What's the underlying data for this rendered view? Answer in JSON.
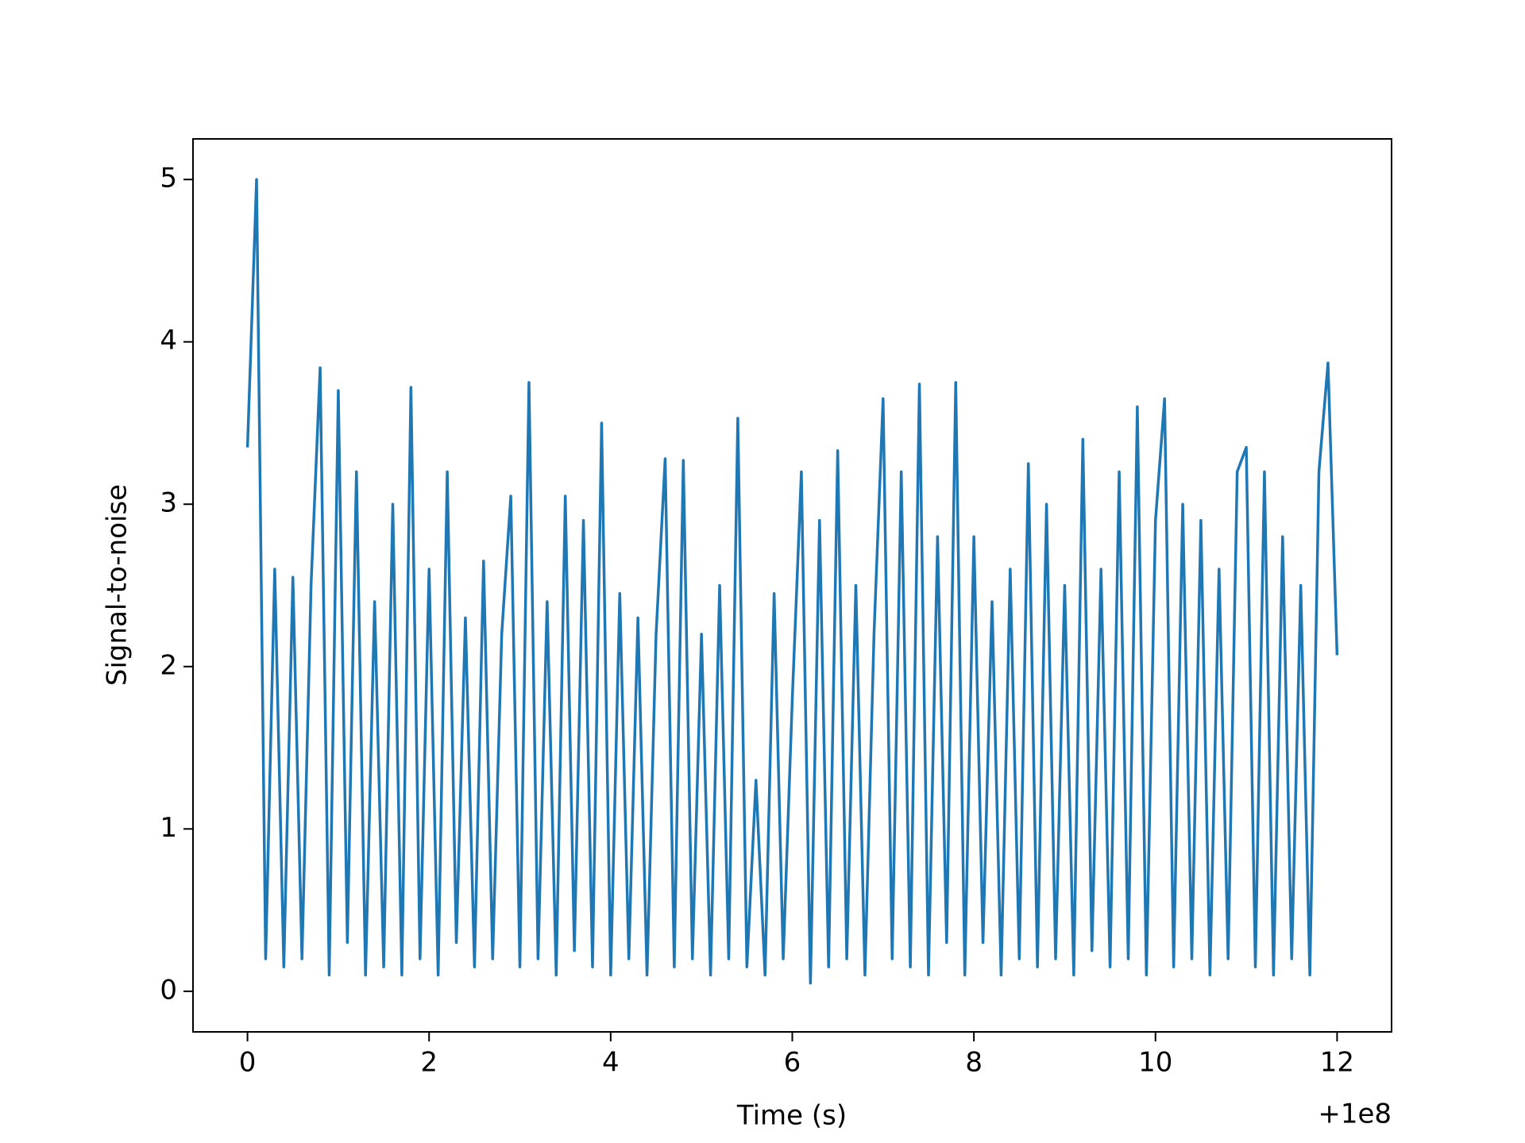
{
  "chart_data": {
    "type": "line",
    "x_label": "Time (s)",
    "y_label": "Signal-to-noise",
    "x_offset_label": "+1e8",
    "xlim": [
      99999999.4,
      100000012.6
    ],
    "ylim": [
      -0.25,
      5.25
    ],
    "xticks": [
      {
        "value": 100000000,
        "label": "0"
      },
      {
        "value": 100000002,
        "label": "2"
      },
      {
        "value": 100000004,
        "label": "4"
      },
      {
        "value": 100000006,
        "label": "6"
      },
      {
        "value": 100000008,
        "label": "8"
      },
      {
        "value": 100000010,
        "label": "10"
      },
      {
        "value": 100000012,
        "label": "12"
      }
    ],
    "yticks": [
      0,
      1,
      2,
      3,
      4,
      5
    ],
    "x": [
      100000000.0,
      100000000.1,
      100000000.2,
      100000000.3,
      100000000.4,
      100000000.5,
      100000000.6,
      100000000.7,
      100000000.8,
      100000000.9,
      100000001.0,
      100000001.1,
      100000001.2,
      100000001.3,
      100000001.4,
      100000001.5,
      100000001.6,
      100000001.7,
      100000001.8,
      100000001.9,
      100000002.0,
      100000002.1,
      100000002.2,
      100000002.3,
      100000002.4,
      100000002.5,
      100000002.6,
      100000002.7,
      100000002.8,
      100000002.9,
      100000003.0,
      100000003.1,
      100000003.2,
      100000003.3,
      100000003.4,
      100000003.5,
      100000003.6,
      100000003.7,
      100000003.8,
      100000003.9,
      100000004.0,
      100000004.1,
      100000004.2,
      100000004.3,
      100000004.4,
      100000004.5,
      100000004.6,
      100000004.7,
      100000004.8,
      100000004.9,
      100000005.0,
      100000005.1,
      100000005.2,
      100000005.3,
      100000005.4,
      100000005.5,
      100000005.6,
      100000005.7,
      100000005.8,
      100000005.9,
      100000006.0,
      100000006.1,
      100000006.2,
      100000006.3,
      100000006.4,
      100000006.5,
      100000006.6,
      100000006.7,
      100000006.8,
      100000006.9,
      100000007.0,
      100000007.1,
      100000007.2,
      100000007.3,
      100000007.4,
      100000007.5,
      100000007.6,
      100000007.7,
      100000007.8,
      100000007.9,
      100000008.0,
      100000008.1,
      100000008.2,
      100000008.3,
      100000008.4,
      100000008.5,
      100000008.6,
      100000008.7,
      100000008.8,
      100000008.9,
      100000009.0,
      100000009.1,
      100000009.2,
      100000009.3,
      100000009.4,
      100000009.5,
      100000009.6,
      100000009.7,
      100000009.8,
      100000009.9,
      100000010.0,
      100000010.1,
      100000010.2,
      100000010.3,
      100000010.4,
      100000010.5,
      100000010.6,
      100000010.7,
      100000010.8,
      100000010.9,
      100000011.0,
      100000011.1,
      100000011.2,
      100000011.3,
      100000011.4,
      100000011.5,
      100000011.6,
      100000011.7,
      100000011.8,
      100000011.9,
      100000012.0
    ],
    "series": [
      {
        "color": "#1f77b4",
        "values": [
          3.35,
          5.0,
          0.2,
          2.6,
          0.15,
          2.55,
          0.2,
          2.5,
          3.84,
          0.1,
          3.7,
          0.3,
          3.2,
          0.1,
          2.4,
          0.15,
          3.0,
          0.1,
          3.72,
          0.2,
          2.6,
          0.1,
          3.2,
          0.3,
          2.3,
          0.15,
          2.65,
          0.2,
          2.2,
          3.05,
          0.15,
          3.75,
          0.2,
          2.4,
          0.1,
          3.05,
          0.25,
          2.9,
          0.15,
          3.5,
          0.1,
          2.45,
          0.2,
          2.3,
          0.1,
          2.2,
          3.28,
          0.15,
          3.27,
          0.2,
          2.2,
          0.1,
          2.5,
          0.2,
          3.53,
          0.15,
          1.3,
          0.1,
          2.45,
          0.2,
          1.8,
          3.2,
          0.05,
          2.9,
          0.15,
          3.33,
          0.2,
          2.5,
          0.1,
          2.2,
          3.65,
          0.2,
          3.2,
          0.15,
          3.74,
          0.1,
          2.8,
          0.3,
          3.75,
          0.1,
          2.8,
          0.3,
          2.4,
          0.1,
          2.6,
          0.2,
          3.25,
          0.15,
          3.0,
          0.2,
          2.5,
          0.1,
          3.4,
          0.25,
          2.6,
          0.15,
          3.2,
          0.2,
          3.6,
          0.1,
          2.9,
          3.65,
          0.15,
          3.0,
          0.2,
          2.9,
          0.1,
          2.6,
          0.2,
          3.2,
          3.35,
          0.15,
          3.2,
          0.1,
          2.8,
          0.2,
          2.5,
          0.1,
          3.2,
          3.87,
          2.07
        ]
      }
    ]
  }
}
